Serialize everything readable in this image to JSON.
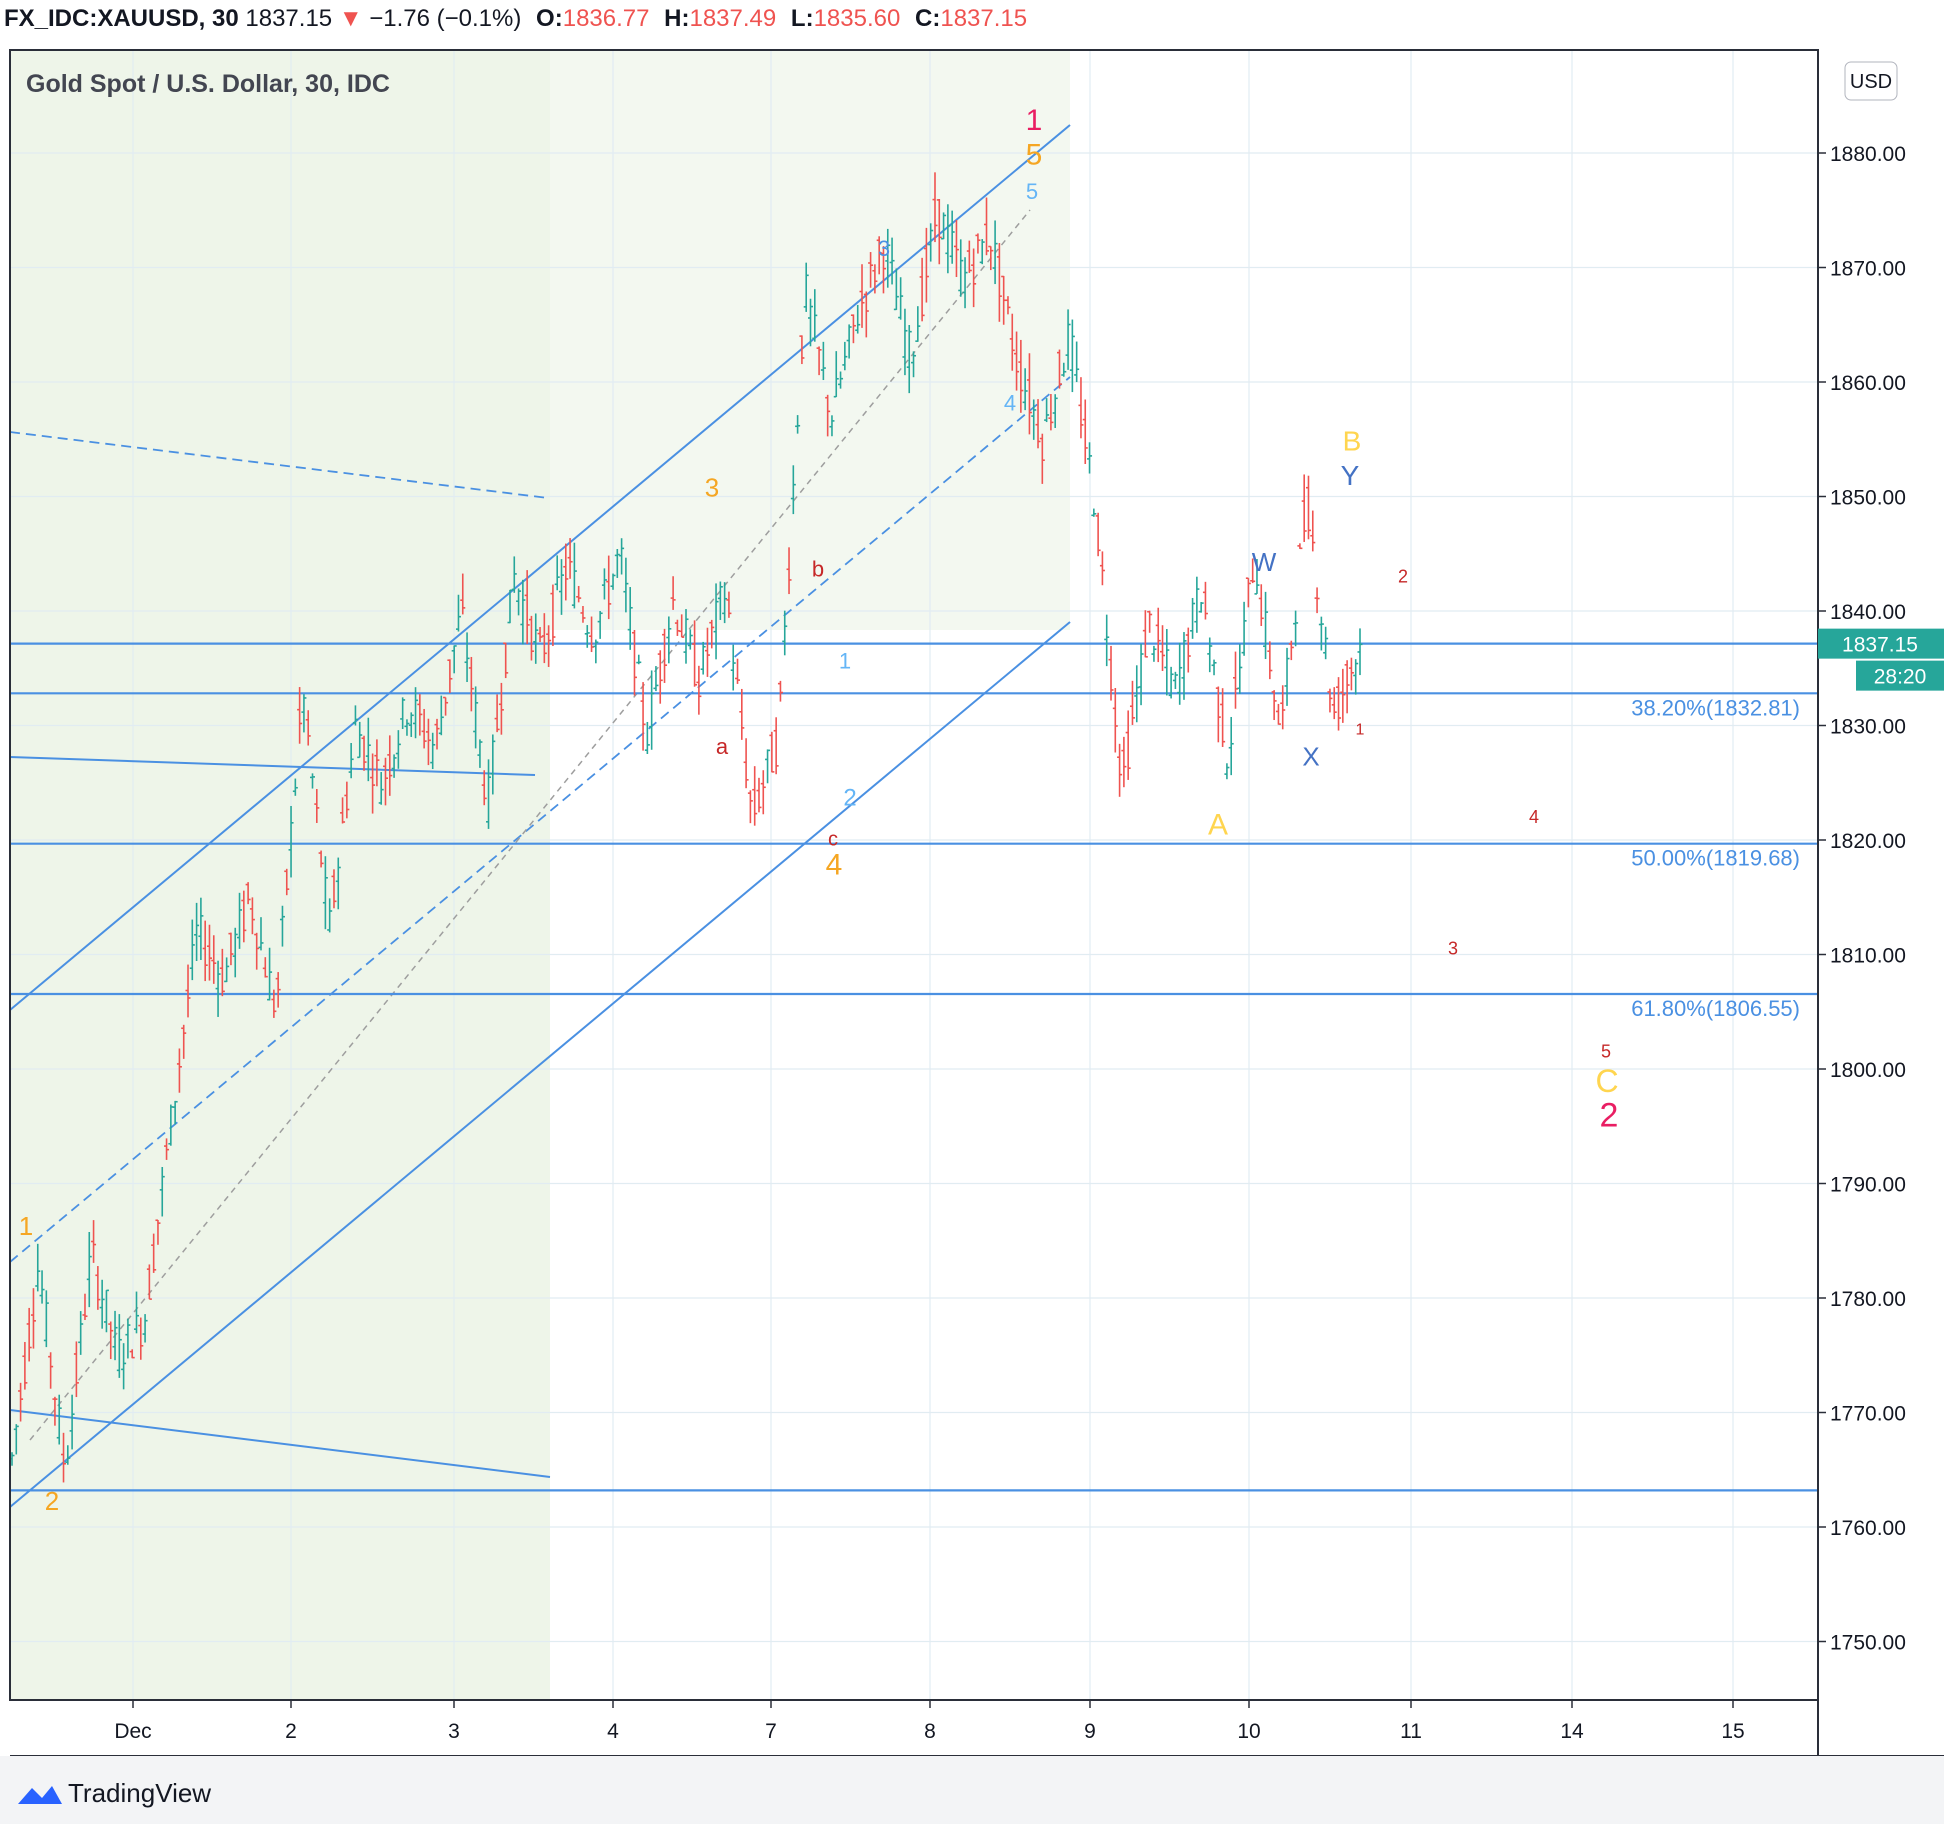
{
  "header": {
    "symbol": "FX_IDC:XAUUSD, 30",
    "last": "1837.15",
    "arrow": "▼",
    "change": "−1.76 (−0.1%)",
    "o_label": "O:",
    "o_val": "1836.77",
    "h_label": "H:",
    "h_val": "1837.49",
    "l_label": "L:",
    "l_val": "1835.60",
    "c_label": "C:",
    "c_val": "1837.15"
  },
  "footer": {
    "brand": "TradingView",
    "icon": "tradingview-cloud-icon"
  },
  "colors": {
    "up": "#26a69a",
    "down": "#ef5350",
    "channel": "#4a90e2",
    "zone": "#eef5e9",
    "price_tag": "#26a69a"
  },
  "chart_data": {
    "type": "candlestick",
    "title": "Gold Spot / U.S. Dollar, 30, IDC",
    "currency": "USD",
    "ylim": [
      1742,
      1890
    ],
    "y_ticks": [
      "1880.00",
      "1870.00",
      "1860.00",
      "1850.00",
      "1840.00",
      "1830.00",
      "1820.00",
      "1810.00",
      "1800.00",
      "1790.00",
      "1780.00",
      "1770.00",
      "1760.00",
      "1750.00"
    ],
    "y_tick_values": [
      1880,
      1870,
      1860,
      1850,
      1840,
      1830,
      1820,
      1810,
      1800,
      1790,
      1780,
      1770,
      1760,
      1750
    ],
    "x_ticks": [
      "Dec",
      "2",
      "3",
      "4",
      "7",
      "8",
      "9",
      "10",
      "11",
      "14",
      "15"
    ],
    "last_price": "1837.15",
    "countdown": "28:20",
    "grid": true,
    "fib_levels": [
      {
        "label": "38.20%(1832.81)",
        "price": 1832.81
      },
      {
        "label": "50.00%(1819.68)",
        "price": 1819.68
      },
      {
        "label": "61.80%(1806.55)",
        "price": 1806.55
      }
    ],
    "horizontal_levels": [
      1837.15,
      1763.2
    ],
    "path_points": [
      1766,
      1783,
      1765,
      1784,
      1775,
      1778,
      1795,
      1812,
      1808,
      1815,
      1805,
      1833,
      1812,
      1830,
      1825,
      1832,
      1828,
      1840,
      1823,
      1843,
      1836,
      1844,
      1838,
      1845,
      1829,
      1841,
      1834,
      1842,
      1822,
      1829,
      1868,
      1857,
      1866,
      1872,
      1862,
      1875,
      1869,
      1873,
      1862,
      1855,
      1864,
      1849,
      1825,
      1839,
      1833,
      1842,
      1827,
      1845,
      1829,
      1850,
      1831,
      1837
    ]
  },
  "waves": [
    {
      "t": "1",
      "c": "#e91e63",
      "p": 1882.0,
      "i": 0
    },
    {
      "t": "5",
      "c": "#f5a623",
      "p": 1879.0,
      "i": 1
    },
    {
      "t": "5",
      "c": "#64b5f6",
      "p": 1876.0,
      "i": 2
    },
    {
      "t": "3",
      "c": "#4a90e2",
      "p": 1871.0,
      "i": 3
    },
    {
      "t": "4",
      "c": "#64b5f6",
      "p": 1857.5,
      "i": 4
    },
    {
      "t": "3",
      "c": "#f5a623",
      "p": 1850.0,
      "i": 5
    },
    {
      "t": "b",
      "c": "#c62828",
      "p": 1843.0,
      "i": 6
    },
    {
      "t": "a",
      "c": "#c62828",
      "p": 1827.5,
      "i": 7
    },
    {
      "t": "1",
      "c": "#64b5f6",
      "p": 1835.0,
      "i": 8
    },
    {
      "t": "2",
      "c": "#64b5f6",
      "p": 1823.0,
      "i": 9
    },
    {
      "t": "c",
      "c": "#c62828",
      "p": 1819.5,
      "i": 10
    },
    {
      "t": "4",
      "c": "#f5a623",
      "p": 1817.0,
      "i": 11
    },
    {
      "t": "1",
      "c": "#f5a623",
      "p": 1785.5,
      "i": 12
    },
    {
      "t": "2",
      "c": "#f5a623",
      "p": 1761.5,
      "i": 13
    },
    {
      "t": "B",
      "c": "#ffd54f",
      "p": 1854.0,
      "i": 14
    },
    {
      "t": "Y",
      "c": "#4472c4",
      "p": 1851.0,
      "i": 15
    },
    {
      "t": "W",
      "c": "#4472c4",
      "p": 1843.5,
      "i": 16
    },
    {
      "t": "X",
      "c": "#4472c4",
      "p": 1826.5,
      "i": 17
    },
    {
      "t": "A",
      "c": "#ffd54f",
      "p": 1820.5,
      "i": 18
    },
    {
      "t": "1",
      "c": "#c62828",
      "p": 1829.2,
      "i": 19
    },
    {
      "t": "2",
      "c": "#c62828",
      "p": 1842.5,
      "i": 20
    },
    {
      "t": "4",
      "c": "#c62828",
      "p": 1821.5,
      "i": 21
    },
    {
      "t": "3",
      "c": "#c62828",
      "p": 1810.0,
      "i": 22
    },
    {
      "t": "5",
      "c": "#c62828",
      "p": 1801.0,
      "i": 23
    },
    {
      "t": "C",
      "c": "#ffd54f",
      "p": 1798.0,
      "i": 24
    },
    {
      "t": "2",
      "c": "#e91e63",
      "p": 1795.0,
      "i": 25
    }
  ]
}
